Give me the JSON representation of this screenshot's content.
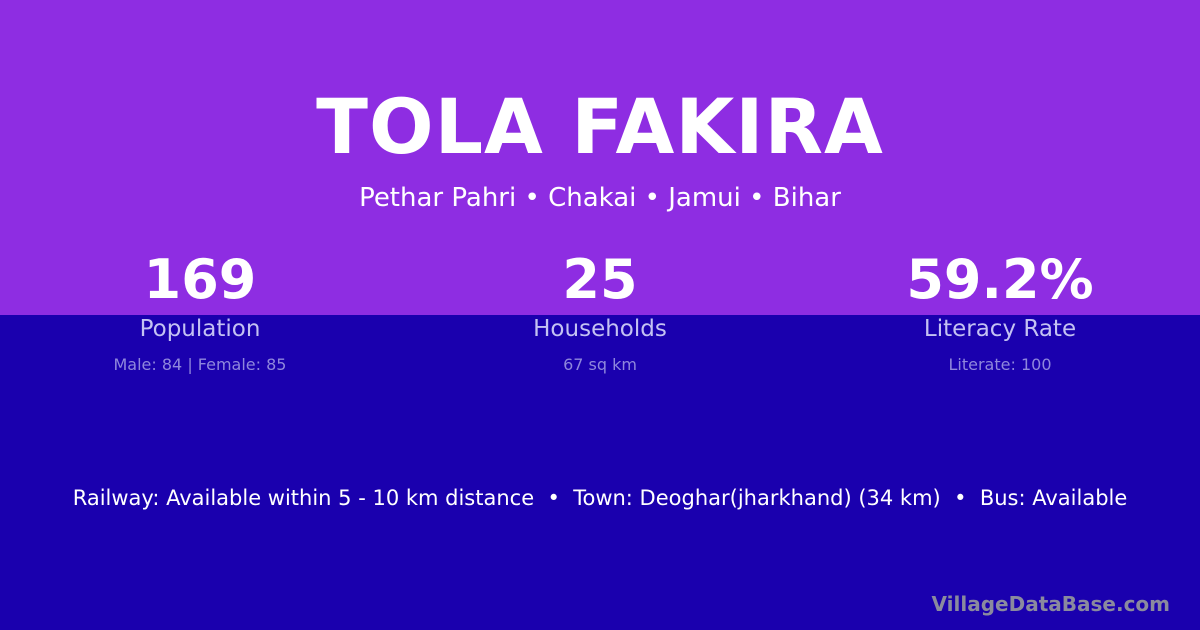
{
  "colors": {
    "top": "#8e2de2",
    "bottom": "#1a00ae"
  },
  "title": "TOLA FAKIRA",
  "subtitle": "Pethar Pahri • Chakai • Jamui • Bihar",
  "stats": [
    {
      "value": "169",
      "label": "Population",
      "detail": "Male: 84 | Female: 85"
    },
    {
      "value": "25",
      "label": "Households",
      "detail": "67 sq km"
    },
    {
      "value": "59.2%",
      "label": "Literacy Rate",
      "detail": "Literate: 100"
    }
  ],
  "info": "Railway: Available within 5 - 10 km distance  •  Town: Deoghar(jharkhand) (34 km)  •  Bus: Available",
  "brand": "VillageDataBase.com"
}
